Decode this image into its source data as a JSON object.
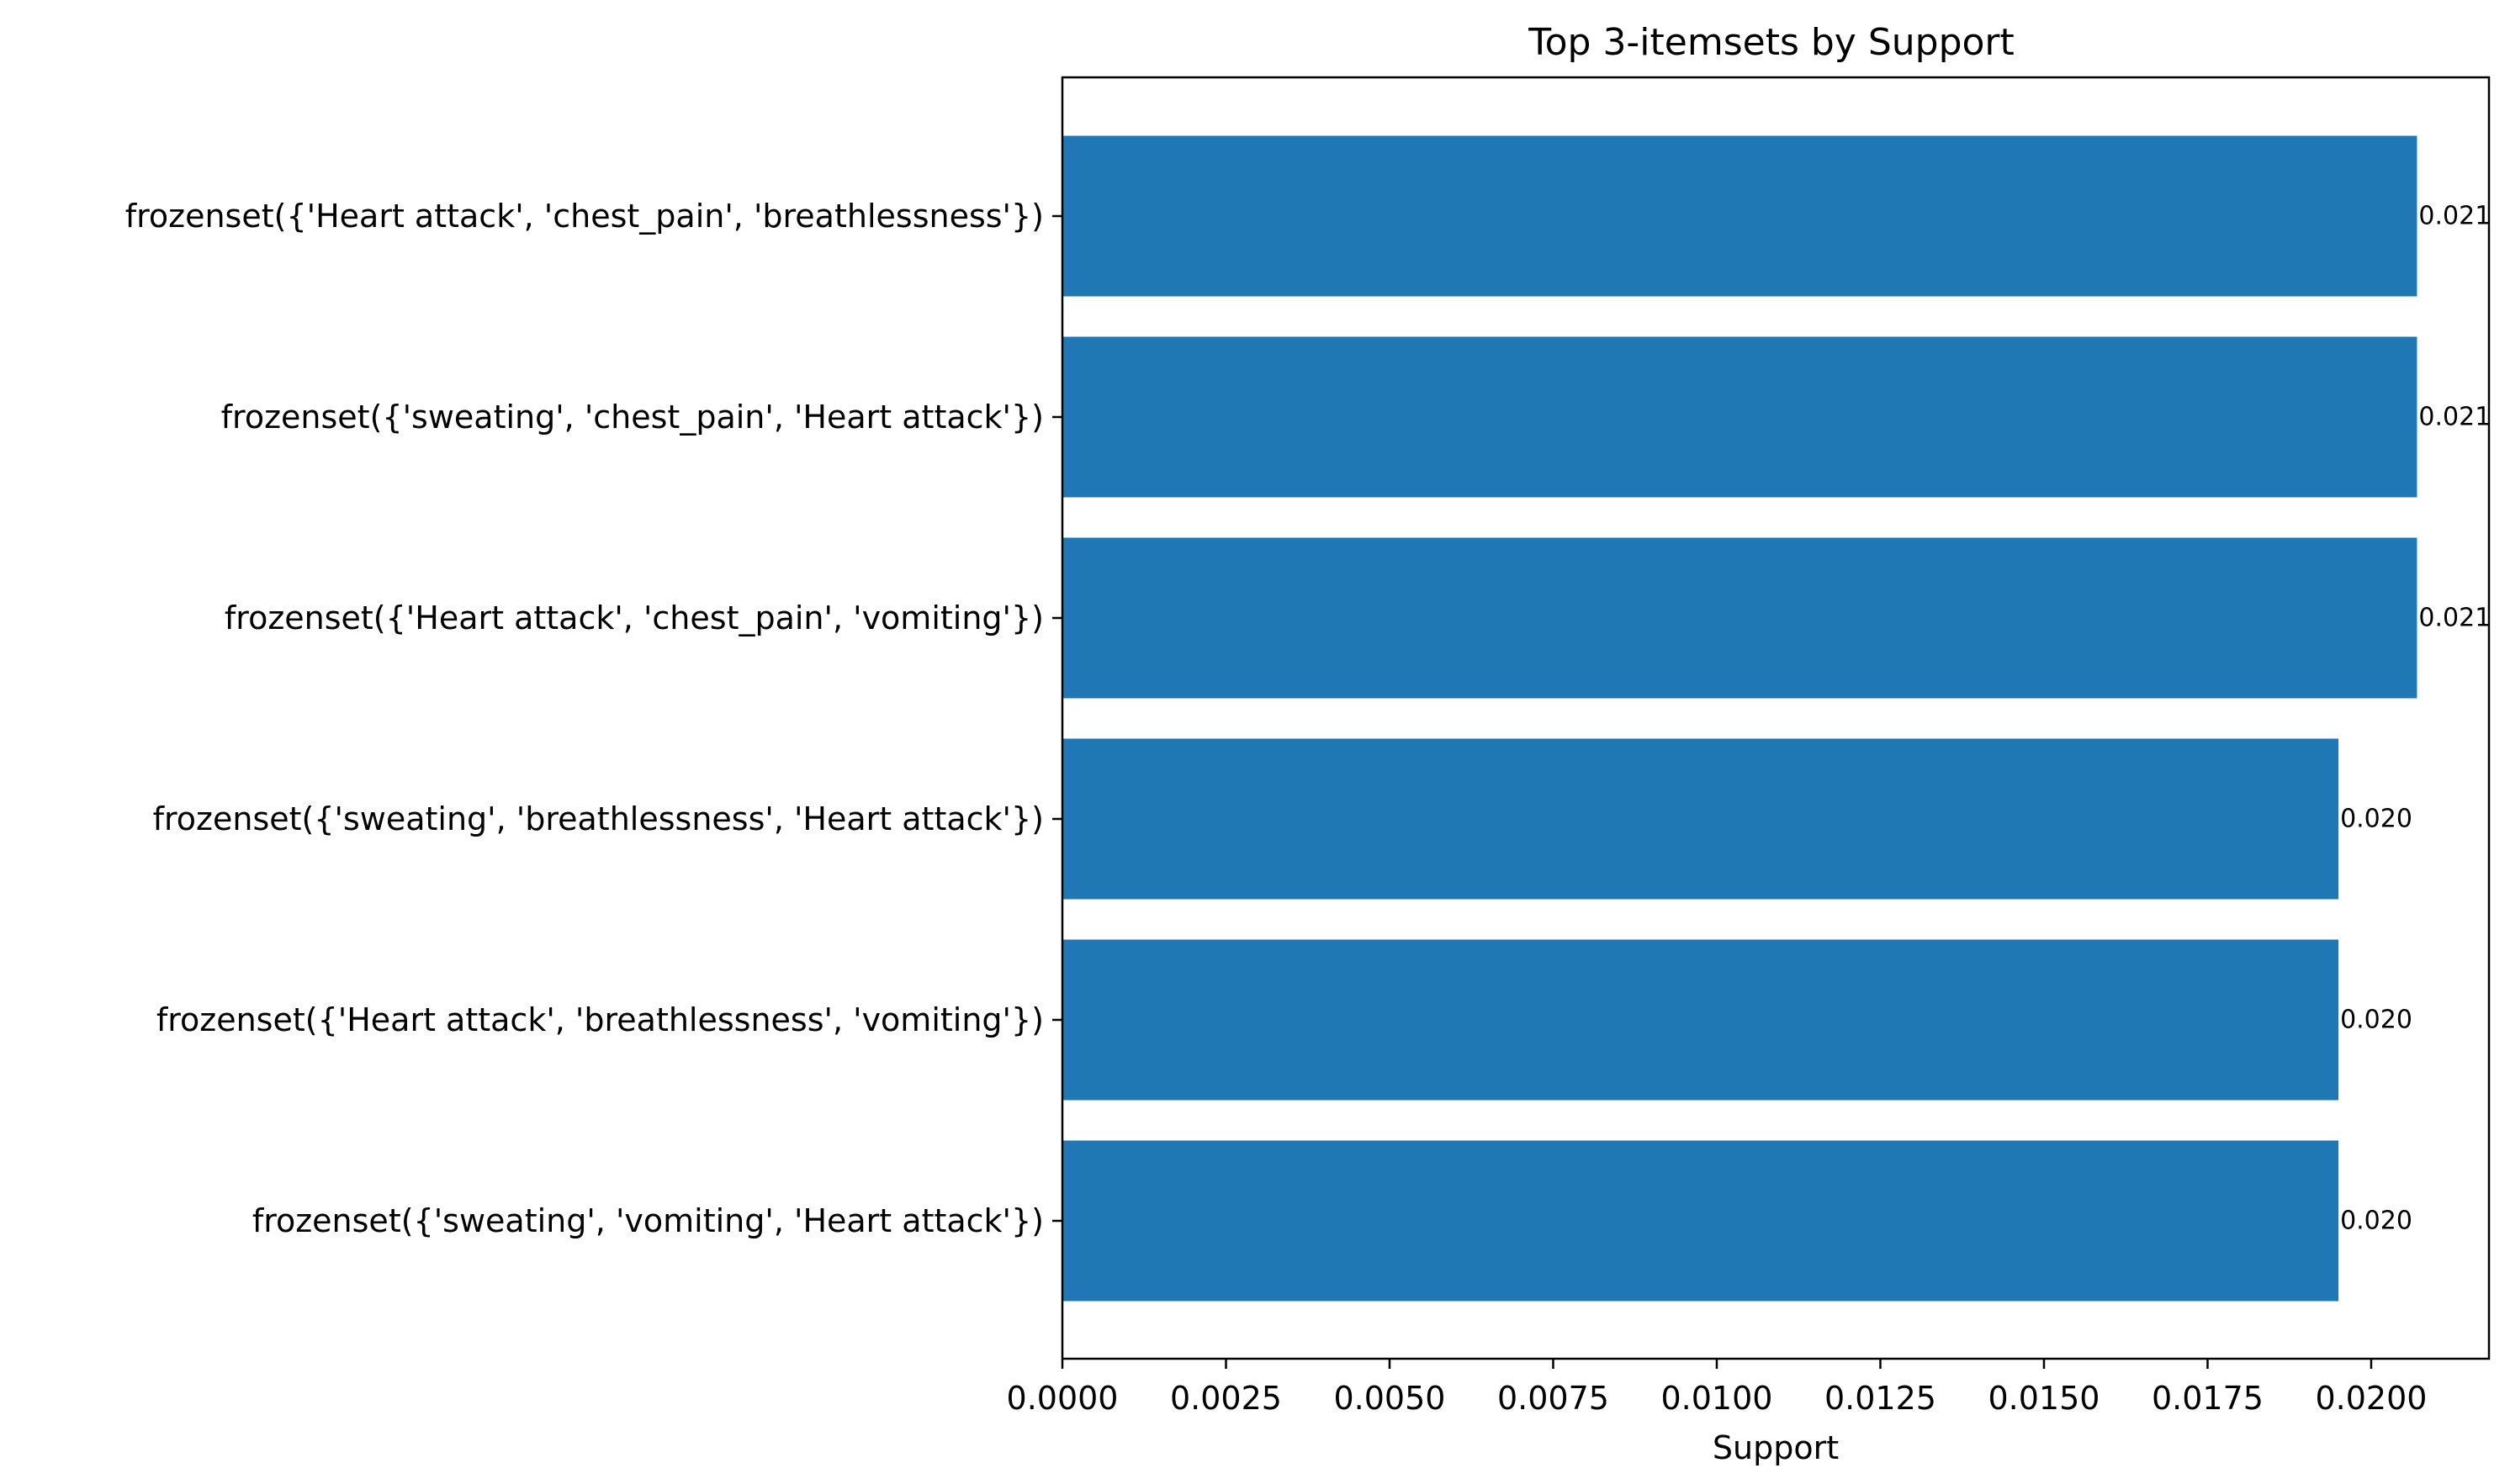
{
  "chart_data": {
    "type": "bar",
    "orientation": "horizontal",
    "title": "Top 3-itemsets by Support",
    "xlabel": "Support",
    "ylabel": "",
    "xlim": [
      0,
      0.0218
    ],
    "xticks": [
      0.0,
      0.0025,
      0.005,
      0.0075,
      0.01,
      0.0125,
      0.015,
      0.0175,
      0.02
    ],
    "xtick_labels": [
      "0.0000",
      "0.0025",
      "0.0050",
      "0.0075",
      "0.0100",
      "0.0125",
      "0.0150",
      "0.0175",
      "0.0200"
    ],
    "grid": false,
    "bar_color": "#1f77b4",
    "categories": [
      "frozenset({'Heart attack', 'chest_pain', 'breathlessness'})",
      "frozenset({'sweating', 'chest_pain', 'Heart attack'})",
      "frozenset({'Heart attack', 'chest_pain', 'vomiting'})",
      "frozenset({'sweating', 'breathlessness', 'Heart attack'})",
      "frozenset({'Heart attack', 'breathlessness', 'vomiting'})",
      "frozenset({'sweating', 'vomiting', 'Heart attack'})"
    ],
    "values": [
      0.0207,
      0.0207,
      0.0207,
      0.0195,
      0.0195,
      0.0195
    ],
    "value_labels": [
      "0.021",
      "0.021",
      "0.021",
      "0.020",
      "0.020",
      "0.020"
    ]
  }
}
